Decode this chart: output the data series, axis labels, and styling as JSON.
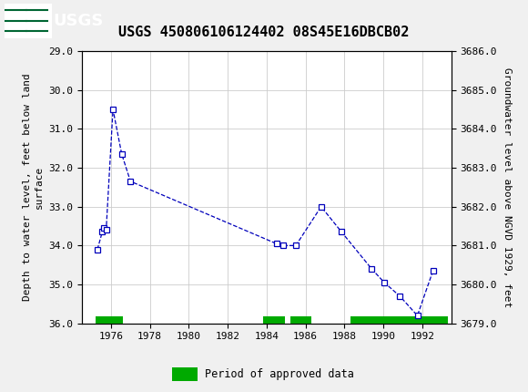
{
  "title": "USGS 450806106124402 08S45E16DBCB02",
  "ylabel_left": "Depth to water level, feet below land\nsurface",
  "ylabel_right": "Groundwater level above NGVD 1929, feet",
  "xlim": [
    1974.5,
    1993.5
  ],
  "ylim_left": [
    29.0,
    36.0
  ],
  "ylim_right": [
    3686.0,
    3679.0
  ],
  "xticks": [
    1976,
    1978,
    1980,
    1982,
    1984,
    1986,
    1988,
    1990,
    1992
  ],
  "yticks_left": [
    29.0,
    30.0,
    31.0,
    32.0,
    33.0,
    34.0,
    35.0,
    36.0
  ],
  "yticks_right": [
    3686.0,
    3685.0,
    3684.0,
    3683.0,
    3682.0,
    3681.0,
    3680.0,
    3679.0
  ],
  "data_x": [
    1975.3,
    1975.55,
    1975.65,
    1975.75,
    1976.1,
    1976.55,
    1977.0,
    1984.5,
    1984.85,
    1985.5,
    1986.8,
    1987.85,
    1989.4,
    1990.05,
    1990.85,
    1991.75,
    1992.55
  ],
  "data_y": [
    34.1,
    33.65,
    33.55,
    33.6,
    30.5,
    31.65,
    32.35,
    33.95,
    34.0,
    34.0,
    33.0,
    33.65,
    34.6,
    34.95,
    35.3,
    35.8,
    34.65
  ],
  "line_color": "#0000bb",
  "marker_color": "#0000bb",
  "marker_face": "white",
  "grid_color": "#cccccc",
  "bg_color": "#ffffff",
  "header_bg": "#006633",
  "header_text": "USGS",
  "approved_color": "#00aa00",
  "approved_periods": [
    [
      1975.2,
      1976.6
    ],
    [
      1983.8,
      1984.95
    ],
    [
      1985.2,
      1986.3
    ],
    [
      1988.3,
      1993.3
    ]
  ],
  "approved_y_center": 35.92,
  "approved_bar_height": 0.2,
  "title_fontsize": 11,
  "tick_fontsize": 8,
  "ylabel_fontsize": 8
}
